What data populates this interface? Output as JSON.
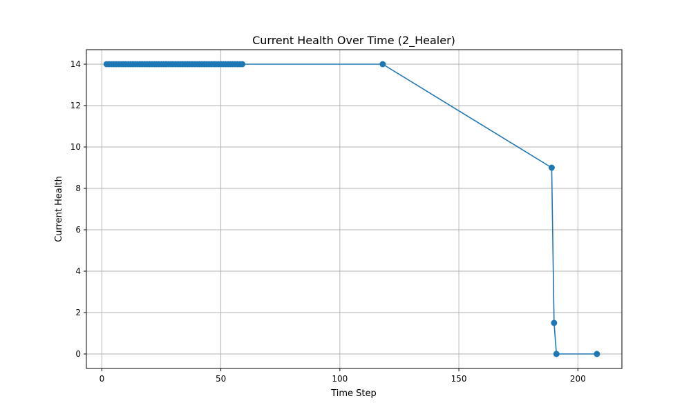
{
  "chart_data": {
    "type": "line",
    "title": "Current Health Over Time (2_Healer)",
    "xlabel": "Time Step",
    "ylabel": "Current Health",
    "xlim": [
      -6.5,
      218.5
    ],
    "ylim": [
      -0.7,
      14.7
    ],
    "xticks": [
      0,
      50,
      100,
      150,
      200
    ],
    "yticks": [
      0,
      2,
      4,
      6,
      8,
      10,
      12,
      14
    ],
    "grid": true,
    "series": [
      {
        "color": "#1f77b4",
        "marker": "circle",
        "x": [
          2,
          3,
          4,
          5,
          6,
          7,
          8,
          9,
          10,
          11,
          12,
          13,
          14,
          15,
          16,
          17,
          18,
          19,
          20,
          21,
          22,
          23,
          24,
          25,
          26,
          27,
          28,
          29,
          30,
          31,
          32,
          33,
          34,
          35,
          36,
          37,
          38,
          39,
          40,
          41,
          42,
          43,
          44,
          45,
          46,
          47,
          48,
          49,
          50,
          51,
          52,
          53,
          54,
          55,
          56,
          57,
          58,
          59,
          118,
          189,
          190,
          191,
          208
        ],
        "y": [
          14,
          14,
          14,
          14,
          14,
          14,
          14,
          14,
          14,
          14,
          14,
          14,
          14,
          14,
          14,
          14,
          14,
          14,
          14,
          14,
          14,
          14,
          14,
          14,
          14,
          14,
          14,
          14,
          14,
          14,
          14,
          14,
          14,
          14,
          14,
          14,
          14,
          14,
          14,
          14,
          14,
          14,
          14,
          14,
          14,
          14,
          14,
          14,
          14,
          14,
          14,
          14,
          14,
          14,
          14,
          14,
          14,
          14,
          14,
          9,
          1.5,
          0,
          0
        ]
      }
    ]
  }
}
